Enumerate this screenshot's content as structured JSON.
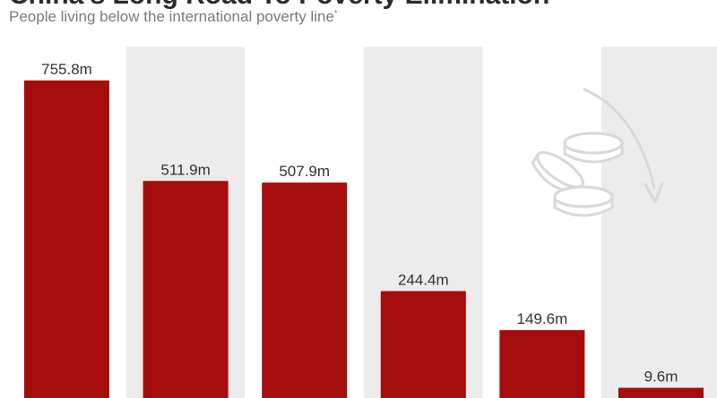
{
  "title": "China's Long Road To Poverty Elimination",
  "subtitle": "People living below the international poverty line",
  "subtitle_mark": "*",
  "colors": {
    "bar": "#a50c0c",
    "band": "#ececec",
    "icon": "#d8d8d8"
  },
  "icon": "coins-arrow-icon",
  "chart_data": {
    "type": "bar",
    "categories": [
      "",
      "",
      "",
      "",
      "",
      ""
    ],
    "values": [
      755.8,
      511.9,
      507.9,
      244.4,
      149.6,
      9.6
    ],
    "labels": [
      "755.8m",
      "511.9m",
      "507.9m",
      "244.4m",
      "149.6m",
      "9.6m"
    ],
    "ylabel": "",
    "xlabel": "",
    "grid": false,
    "legend": "none"
  }
}
